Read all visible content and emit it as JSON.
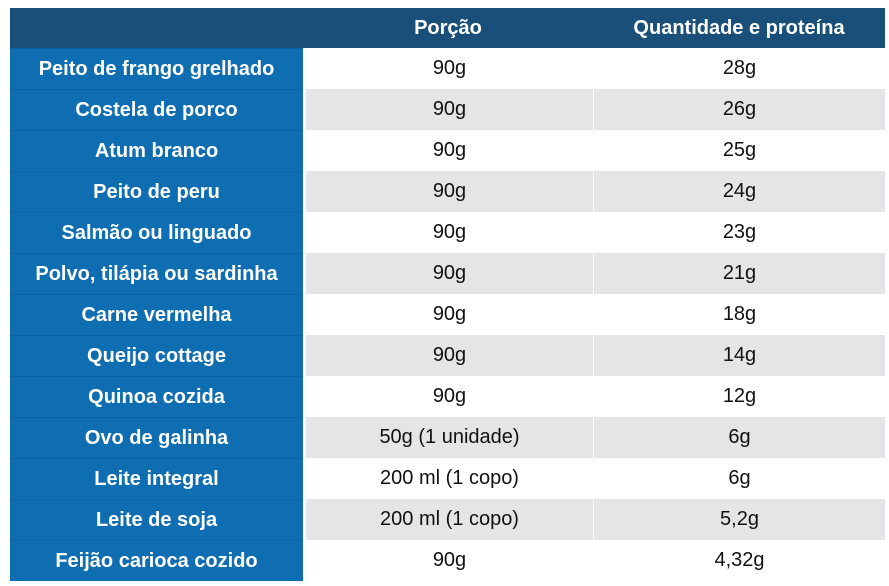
{
  "header": {
    "col_porcao": "Porção",
    "col_quantidade": "Quantidade e proteína"
  },
  "rows": [
    {
      "food": "Peito de frango grelhado",
      "porcao": "90g",
      "proteina": "28g"
    },
    {
      "food": "Costela de porco",
      "porcao": "90g",
      "proteina": "26g"
    },
    {
      "food": "Atum branco",
      "porcao": "90g",
      "proteina": "25g"
    },
    {
      "food": "Peito de peru",
      "porcao": "90g",
      "proteina": "24g"
    },
    {
      "food": "Salmão ou linguado",
      "porcao": "90g",
      "proteina": "23g"
    },
    {
      "food": "Polvo, tilápia ou sardinha",
      "porcao": "90g",
      "proteina": "21g"
    },
    {
      "food": "Carne vermelha",
      "porcao": "90g",
      "proteina": "18g"
    },
    {
      "food": "Queijo cottage",
      "porcao": "90g",
      "proteina": "14g"
    },
    {
      "food": "Quinoa cozida",
      "porcao": "90g",
      "proteina": "12g"
    },
    {
      "food": "Ovo de galinha",
      "porcao": "50g (1 unidade)",
      "proteina": "6g"
    },
    {
      "food": "Leite integral",
      "porcao": "200 ml (1 copo)",
      "proteina": "6g"
    },
    {
      "food": "Leite de soja",
      "porcao": "200 ml (1 copo)",
      "proteina": "5,2g"
    },
    {
      "food": "Feijão carioca cozido",
      "porcao": "90g",
      "proteina": "4,32g"
    }
  ],
  "colors": {
    "header_bg": "#1a4f7a",
    "food_column_bg": "#0f6db1",
    "row_alt_bg": "#e4e5e7"
  }
}
